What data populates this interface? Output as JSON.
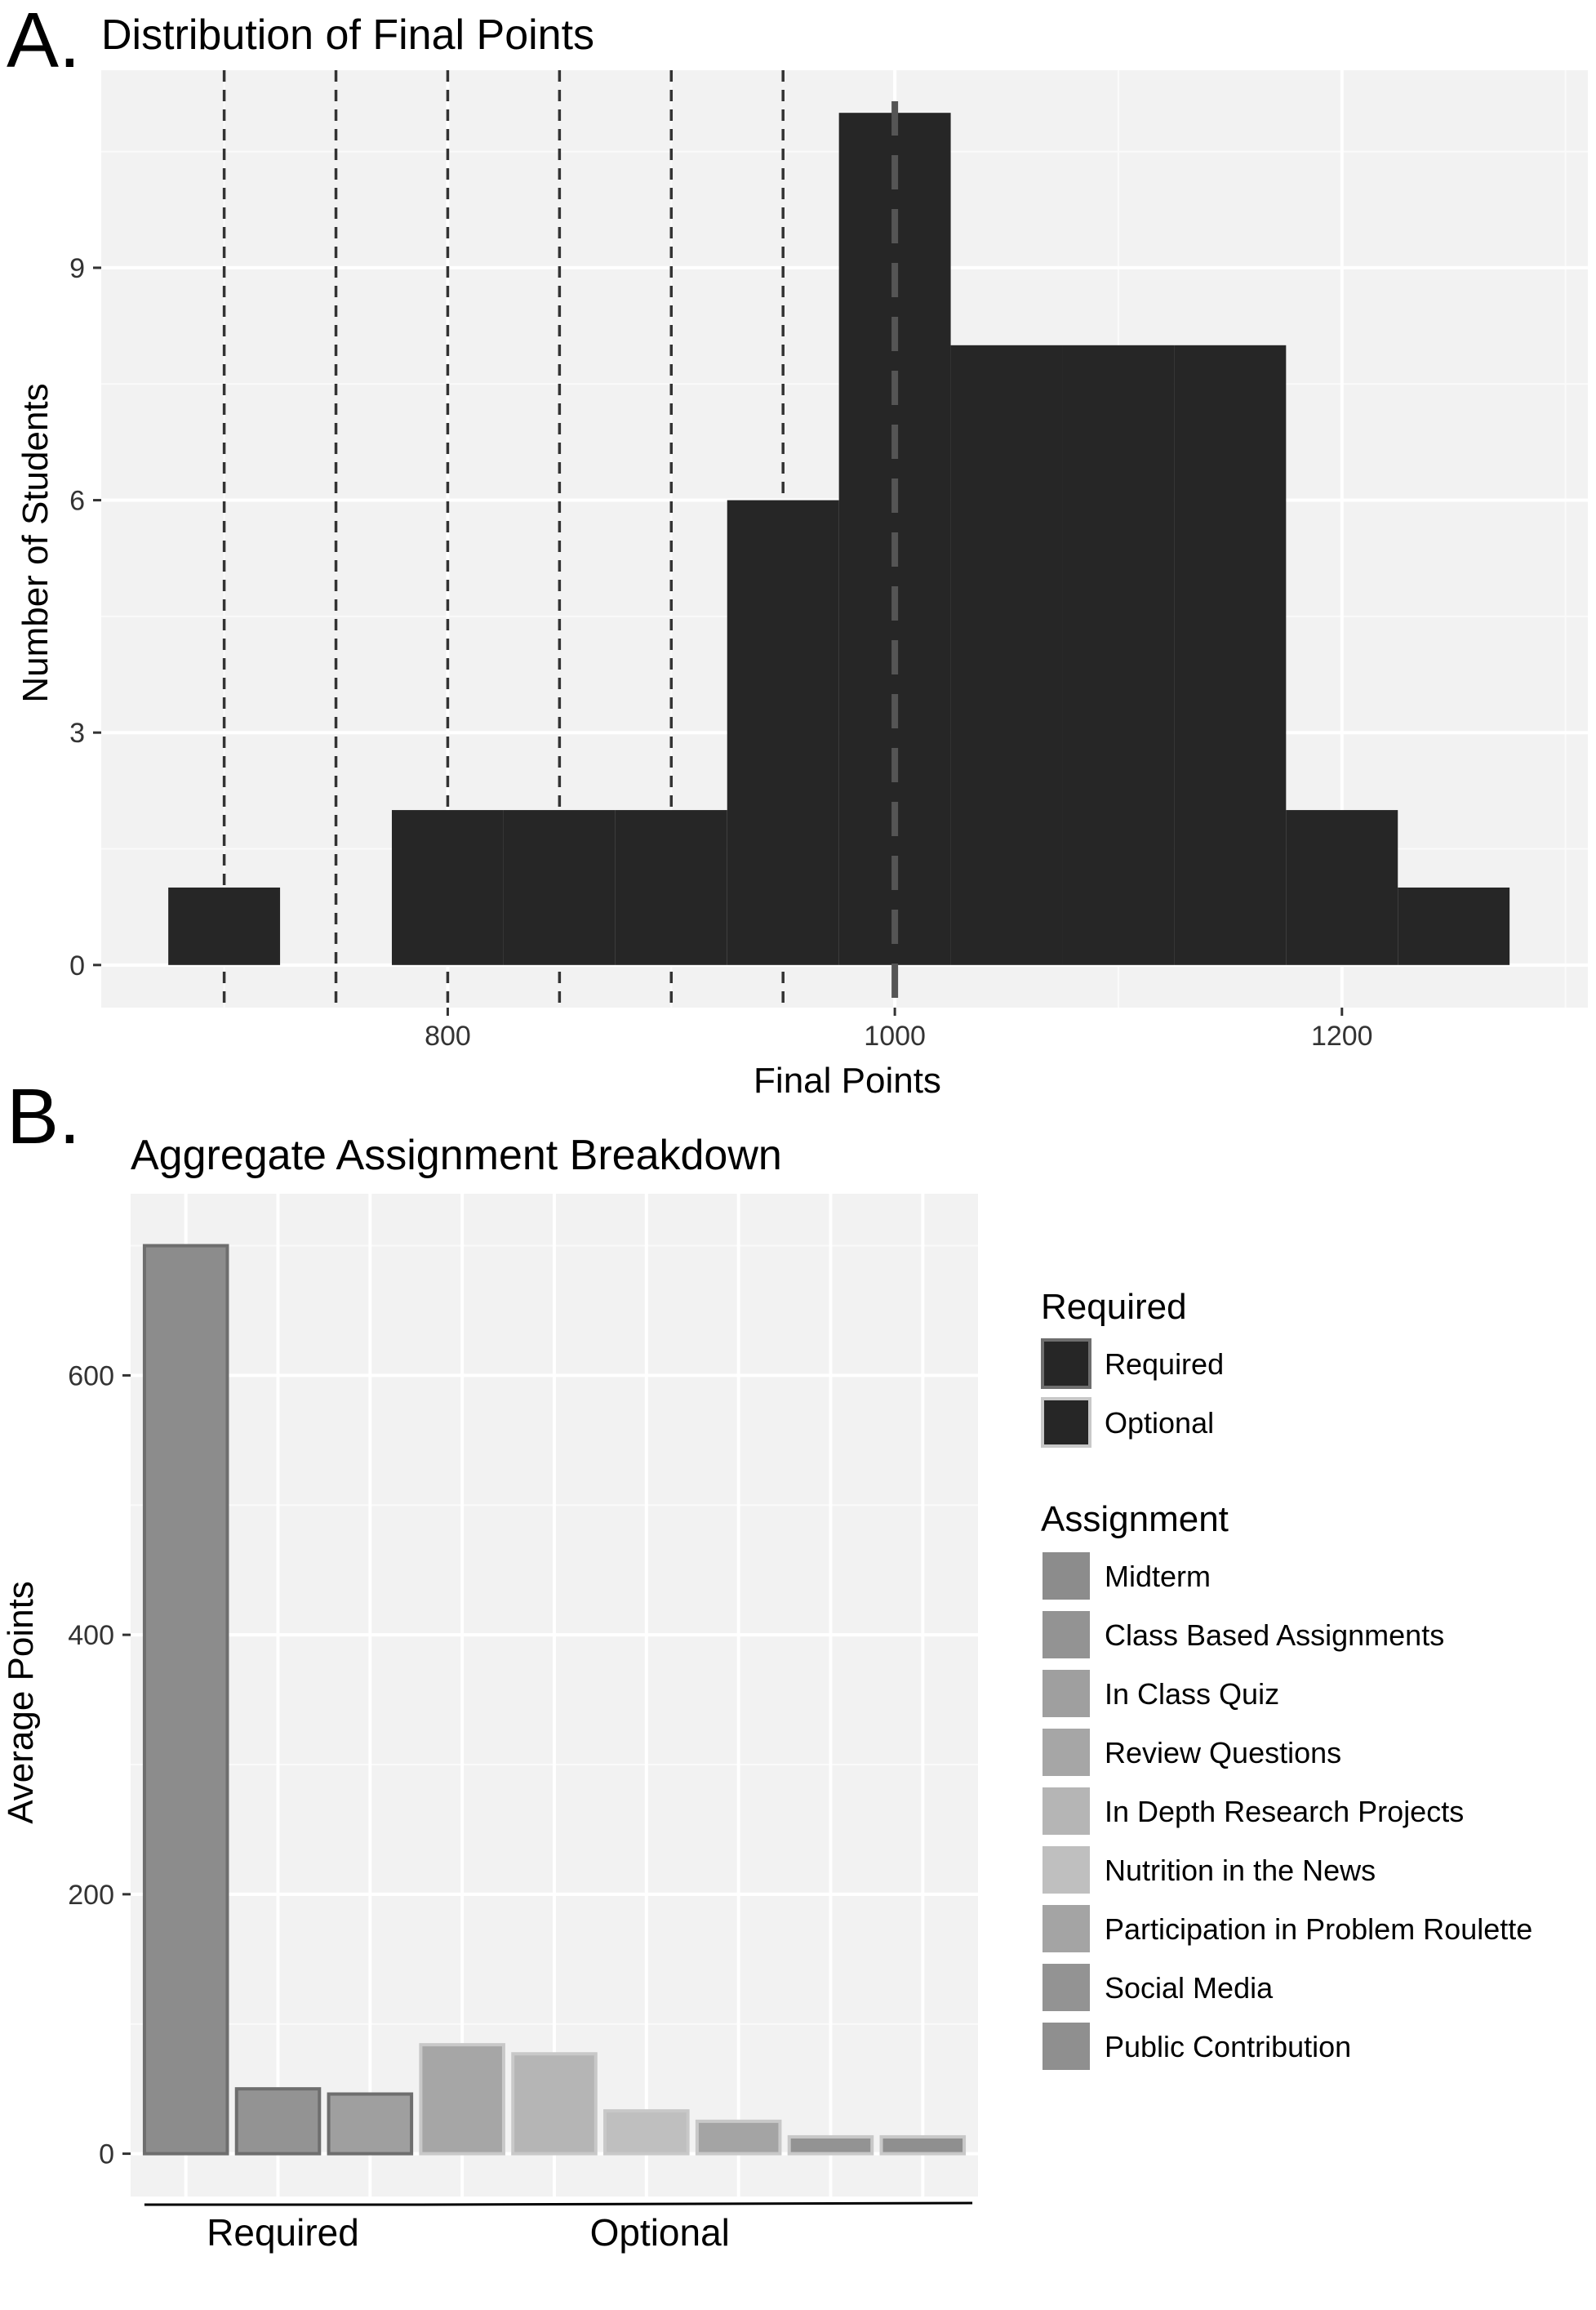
{
  "panels": {
    "a_letter": "A.",
    "b_letter": "B."
  },
  "chart_data": [
    {
      "type": "bar",
      "subtype": "histogram",
      "title": "Distribution of Final Points",
      "xlabel": "Final Points",
      "ylabel": "Number of Students",
      "bin_width": 50,
      "bins": [
        {
          "x_start": 675,
          "x_end": 725,
          "count": 1
        },
        {
          "x_start": 725,
          "x_end": 775,
          "count": 0
        },
        {
          "x_start": 775,
          "x_end": 825,
          "count": 2
        },
        {
          "x_start": 825,
          "x_end": 875,
          "count": 2
        },
        {
          "x_start": 875,
          "x_end": 925,
          "count": 2
        },
        {
          "x_start": 925,
          "x_end": 975,
          "count": 6
        },
        {
          "x_start": 975,
          "x_end": 1025,
          "count": 11
        },
        {
          "x_start": 1025,
          "x_end": 1075,
          "count": 8
        },
        {
          "x_start": 1075,
          "x_end": 1125,
          "count": 8
        },
        {
          "x_start": 1125,
          "x_end": 1175,
          "count": 8
        },
        {
          "x_start": 1175,
          "x_end": 1225,
          "count": 2
        },
        {
          "x_start": 1225,
          "x_end": 1275,
          "count": 1
        }
      ],
      "xlim": [
        645,
        1310
      ],
      "ylim": [
        -0.55,
        11.55
      ],
      "xticks": [
        800,
        1000,
        1200
      ],
      "yticks": [
        0,
        3,
        6,
        9
      ],
      "reference_lines": [
        700,
        750,
        800,
        850,
        900,
        950
      ],
      "highlight_line": 1000,
      "grid": true,
      "bar_color": "#262626",
      "panel_background": "#f2f2f2"
    },
    {
      "type": "bar",
      "title": "Aggregate Assignment Breakdown",
      "xlabel": "",
      "ylabel": "Average Points",
      "categories": [
        "Midterm",
        "Class Based Assignments",
        "In Class Quiz",
        "Review Questions",
        "In Depth Research Projects",
        "Nutrition in the News",
        "Participation in Problem Roulette",
        "Social Media",
        "Public Contribution"
      ],
      "values": [
        700,
        50,
        46,
        84,
        77,
        33,
        25,
        13,
        13
      ],
      "required": [
        "Required",
        "Required",
        "Required",
        "Optional",
        "Optional",
        "Optional",
        "Optional",
        "Optional",
        "Optional"
      ],
      "fill_colors": [
        "#8c8c8c",
        "#939393",
        "#9f9f9f",
        "#a6a6a6",
        "#b5b5b5",
        "#bfbfbf",
        "#a4a4a4",
        "#939393",
        "#8f8f8f"
      ],
      "outline_colors": {
        "Required": "#6e6e6e",
        "Optional": "#c8c8c8"
      },
      "ylim": [
        -33,
        740
      ],
      "yticks": [
        0,
        200,
        400,
        600
      ],
      "grid": true,
      "group_labels": [
        "Required",
        "Optional"
      ],
      "legend_placement": "right",
      "legends": [
        {
          "title": "Required",
          "entries": [
            {
              "label": "Required",
              "fill": "#262626",
              "outline": "#6e6e6e"
            },
            {
              "label": "Optional",
              "fill": "#262626",
              "outline": "#c8c8c8"
            }
          ]
        },
        {
          "title": "Assignment",
          "entries": [
            {
              "label": "Midterm",
              "fill": "#8c8c8c"
            },
            {
              "label": "Class Based Assignments",
              "fill": "#939393"
            },
            {
              "label": "In Class Quiz",
              "fill": "#9f9f9f"
            },
            {
              "label": "Review Questions",
              "fill": "#a6a6a6"
            },
            {
              "label": "In Depth Research Projects",
              "fill": "#b5b5b5"
            },
            {
              "label": "Nutrition in the News",
              "fill": "#bfbfbf"
            },
            {
              "label": "Participation in Problem Roulette",
              "fill": "#a4a4a4"
            },
            {
              "label": "Social Media",
              "fill": "#939393"
            },
            {
              "label": "Public Contribution",
              "fill": "#8f8f8f"
            }
          ]
        }
      ],
      "panel_background": "#f2f2f2"
    }
  ]
}
